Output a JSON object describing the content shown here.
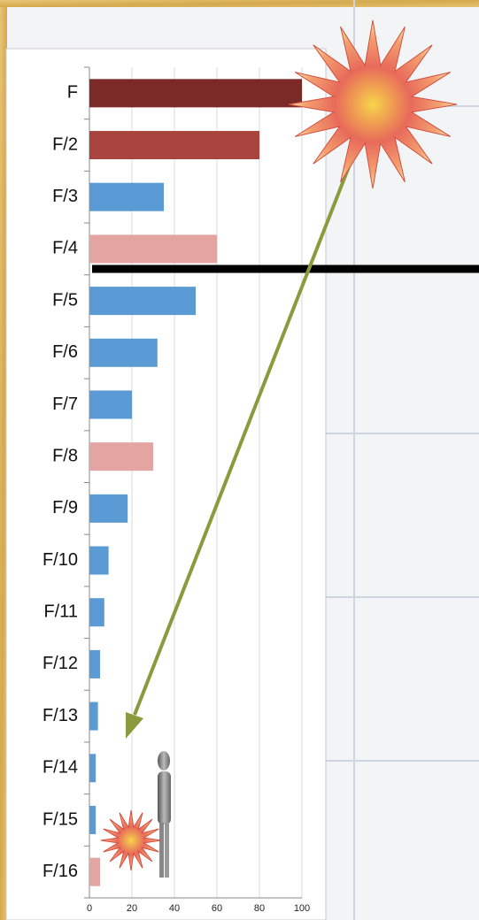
{
  "chart_data": {
    "type": "bar",
    "orientation": "horizontal",
    "categories": [
      "F",
      "F/2",
      "F/3",
      "F/4",
      "F/5",
      "F/6",
      "F/7",
      "F/8",
      "F/9",
      "F/10",
      "F/11",
      "F/12",
      "F/13",
      "F/14",
      "F/15",
      "F/16"
    ],
    "values": [
      100,
      80,
      35,
      60,
      50,
      32,
      20,
      30,
      18,
      9,
      7,
      5,
      4,
      3,
      3,
      5
    ],
    "colors": [
      "#7b2a28",
      "#a9443e",
      "#5b9bd5",
      "#e3a4a2",
      "#5b9bd5",
      "#5b9bd5",
      "#5b9bd5",
      "#e3a4a2",
      "#5b9bd5",
      "#5b9bd5",
      "#5b9bd5",
      "#5b9bd5",
      "#5b9bd5",
      "#5b9bd5",
      "#5b9bd5",
      "#e3a4a2"
    ],
    "xlim": [
      0,
      100
    ],
    "xticks": [
      0,
      20,
      40,
      60,
      80,
      100
    ],
    "grid": true
  }
}
